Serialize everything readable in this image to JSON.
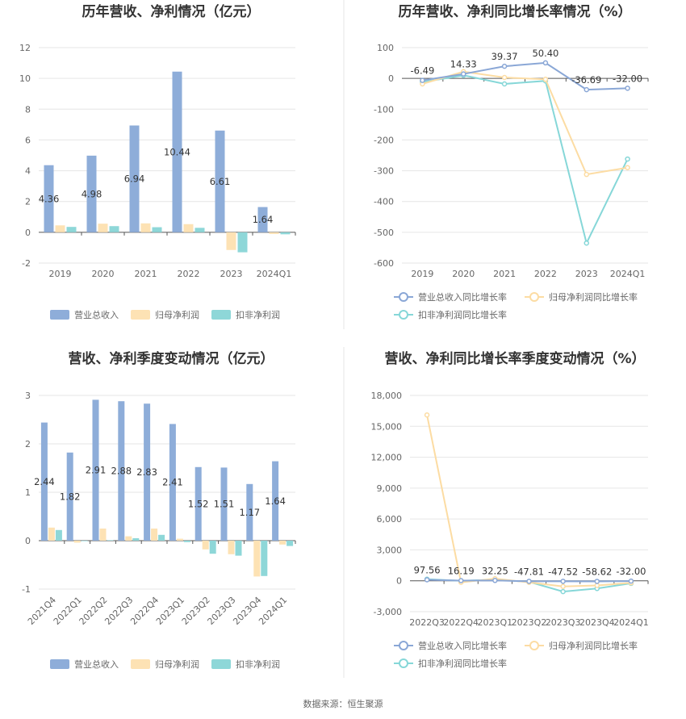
{
  "source_note": "数据来源：恒生聚源",
  "colors": {
    "revenue": "#8eadd9",
    "net_profit": "#fde2b4",
    "non_gaap": "#8ed7d8",
    "rev_line": "#8aa7d6",
    "np_line": "#fcdca3",
    "ng_line": "#86d7d8"
  },
  "chart_data": [
    {
      "type": "bar",
      "title": "历年营收、净利情况（亿元）",
      "categories": [
        "2019",
        "2020",
        "2021",
        "2022",
        "2023",
        "2024Q1"
      ],
      "series": [
        {
          "name": "营业总收入",
          "values": [
            4.36,
            4.98,
            6.94,
            10.44,
            6.61,
            1.64
          ]
        },
        {
          "name": "归母净利润",
          "values": [
            0.45,
            0.56,
            0.58,
            0.53,
            -1.15,
            -0.11
          ]
        },
        {
          "name": "扣非净利润",
          "values": [
            0.35,
            0.4,
            0.33,
            0.29,
            -1.3,
            -0.13
          ]
        }
      ],
      "data_labels": [
        "4.36",
        "4.98",
        "6.94",
        "10.44",
        "6.61",
        "1.64"
      ],
      "yticks": [
        "-2",
        "0",
        "2",
        "4",
        "6",
        "8",
        "10",
        "12"
      ],
      "ylim": [
        -2,
        12
      ],
      "grid": true,
      "legend": "bottom"
    },
    {
      "type": "line",
      "title": "历年营收、净利同比增长率情况（%）",
      "categories": [
        "2019",
        "2020",
        "2021",
        "2022",
        "2023",
        "2024Q1"
      ],
      "series": [
        {
          "name": "营业总收入同比增长率",
          "values": [
            -6.49,
            14.33,
            39.37,
            50.4,
            -36.69,
            -32.0
          ]
        },
        {
          "name": "归母净利润同比增长率",
          "values": [
            -18,
            22,
            3,
            -3,
            -312,
            -290
          ]
        },
        {
          "name": "扣非净利润同比增长率",
          "values": [
            -12,
            10,
            -18,
            -8,
            -535,
            -262
          ]
        }
      ],
      "data_labels": [
        "-6.49",
        "14.33",
        "39.37",
        "50.40",
        "-36.69",
        "-32.00"
      ],
      "yticks": [
        "-600",
        "-500",
        "-400",
        "-300",
        "-200",
        "-100",
        "0",
        "100"
      ],
      "ylim": [
        -600,
        100
      ],
      "grid": true,
      "legend": "bottom"
    },
    {
      "type": "bar",
      "title": "营收、净利季度变动情况（亿元）",
      "categories": [
        "2021Q4",
        "2022Q1",
        "2022Q2",
        "2022Q3",
        "2022Q4",
        "2023Q1",
        "2023Q2",
        "2023Q3",
        "2023Q4",
        "2024Q1"
      ],
      "series": [
        {
          "name": "营业总收入",
          "values": [
            2.44,
            1.82,
            2.91,
            2.88,
            2.83,
            2.41,
            1.52,
            1.51,
            1.17,
            1.64
          ]
        },
        {
          "name": "归母净利润",
          "values": [
            0.27,
            -0.04,
            0.25,
            0.09,
            0.25,
            0.04,
            -0.18,
            -0.28,
            -0.74,
            -0.08
          ]
        },
        {
          "name": "扣非净利润",
          "values": [
            0.22,
            -0.01,
            0.01,
            0.05,
            0.12,
            -0.03,
            -0.27,
            -0.31,
            -0.73,
            -0.11
          ]
        }
      ],
      "data_labels": [
        "2.44",
        "1.82",
        "2.91",
        "2.88",
        "2.83",
        "2.41",
        "1.52",
        "1.51",
        "1.17",
        "1.64"
      ],
      "yticks": [
        "-1",
        "0",
        "1",
        "2",
        "3"
      ],
      "ylim": [
        -1,
        3
      ],
      "grid": true,
      "legend": "bottom"
    },
    {
      "type": "line",
      "title": "营收、净利同比增长率季度变动情况（%）",
      "categories": [
        "2022Q3",
        "2022Q4",
        "2023Q1",
        "2023Q2",
        "2023Q3",
        "2023Q4",
        "2024Q1"
      ],
      "series": [
        {
          "name": "营业总收入同比增长率",
          "values": [
            97.56,
            16.19,
            32.25,
            -47.81,
            -47.52,
            -58.62,
            -32.0
          ]
        },
        {
          "name": "归母净利润同比增长率",
          "values": [
            16100,
            -150,
            200,
            -150,
            -550,
            -450,
            -200
          ]
        },
        {
          "name": "扣非净利润同比增长率",
          "values": [
            150,
            0,
            100,
            -100,
            -1050,
            -750,
            -250
          ]
        }
      ],
      "data_labels": [
        "97.56",
        "16.19",
        "32.25",
        "-47.81",
        "-47.52",
        "-58.62",
        "-32.00"
      ],
      "yticks": [
        "-3,000",
        "0",
        "3,000",
        "6,000",
        "9,000",
        "12,000",
        "15,000",
        "18,000"
      ],
      "ylim": [
        -3000,
        18000
      ],
      "grid": true,
      "legend": "bottom"
    }
  ]
}
